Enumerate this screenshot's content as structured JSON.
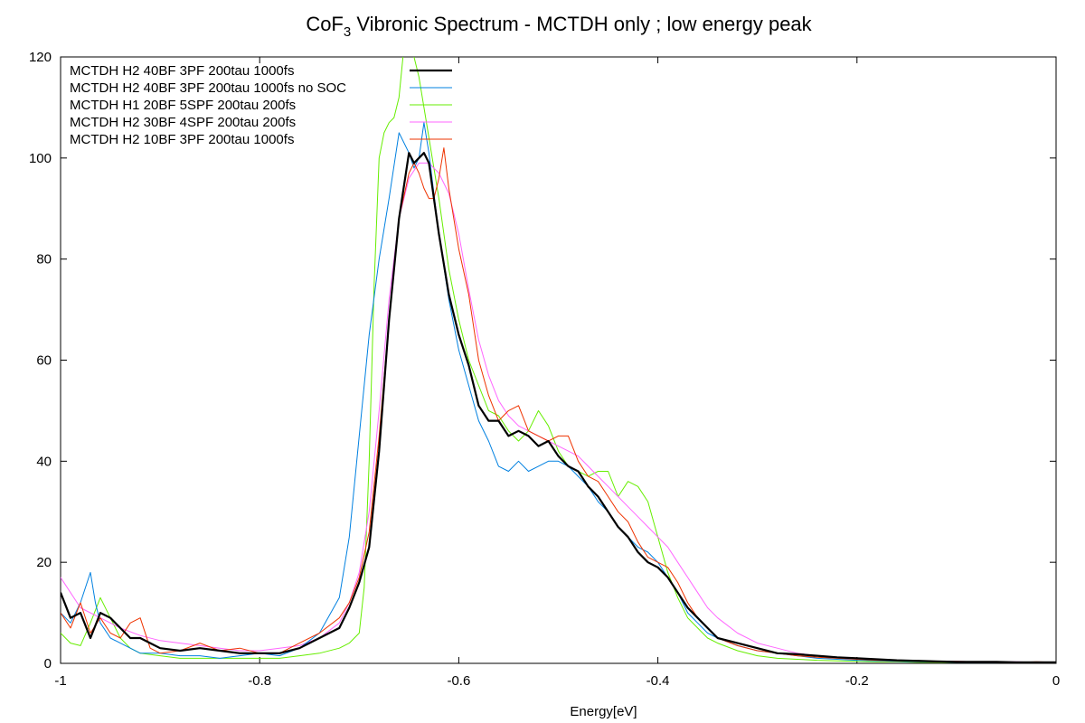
{
  "chart_data": {
    "type": "line",
    "title": "CoF",
    "title_subscript": "3",
    "title_rest": " Vibronic Spectrum - MCTDH only ; low energy peak",
    "xlabel": "Energy[eV]",
    "ylabel": "",
    "xlim": [
      -1,
      0
    ],
    "ylim": [
      0,
      120
    ],
    "x_ticks": [
      -1,
      -0.8,
      -0.6,
      -0.4,
      -0.2,
      0
    ],
    "x_tick_labels": [
      "-1",
      "-0.8",
      "-0.6",
      "-0.4",
      "-0.2",
      "0"
    ],
    "y_ticks": [
      0,
      20,
      40,
      60,
      80,
      100,
      120
    ],
    "y_tick_labels": [
      "0",
      "20",
      "40",
      "60",
      "80",
      "100",
      "120"
    ],
    "grid": false,
    "zero_line": "dotted",
    "legend_position": "top-left",
    "series": [
      {
        "name": "MCTDH H2 40BF 3PF 200tau 1000fs",
        "color": "#000000",
        "bold": true,
        "x": [
          -1.0,
          -0.99,
          -0.98,
          -0.97,
          -0.96,
          -0.95,
          -0.94,
          -0.93,
          -0.92,
          -0.91,
          -0.9,
          -0.88,
          -0.86,
          -0.84,
          -0.82,
          -0.8,
          -0.78,
          -0.76,
          -0.74,
          -0.72,
          -0.71,
          -0.7,
          -0.69,
          -0.68,
          -0.67,
          -0.66,
          -0.65,
          -0.645,
          -0.64,
          -0.635,
          -0.63,
          -0.625,
          -0.62,
          -0.61,
          -0.6,
          -0.59,
          -0.58,
          -0.57,
          -0.56,
          -0.55,
          -0.54,
          -0.53,
          -0.52,
          -0.51,
          -0.5,
          -0.49,
          -0.48,
          -0.47,
          -0.46,
          -0.45,
          -0.44,
          -0.43,
          -0.42,
          -0.41,
          -0.4,
          -0.39,
          -0.38,
          -0.37,
          -0.36,
          -0.35,
          -0.34,
          -0.32,
          -0.3,
          -0.28,
          -0.26,
          -0.24,
          -0.22,
          -0.2,
          -0.18,
          -0.16,
          -0.14,
          -0.12,
          -0.1,
          -0.08,
          -0.06,
          -0.04,
          -0.02,
          0.0
        ],
        "y": [
          14,
          9,
          10,
          5,
          10,
          9,
          7,
          5,
          5,
          4,
          3,
          2.5,
          3,
          2.5,
          2,
          2,
          2,
          3,
          5,
          7,
          11,
          16,
          23,
          42,
          68,
          88,
          101,
          99,
          100,
          101,
          99,
          92,
          85,
          73,
          65,
          59,
          51,
          48,
          48,
          45,
          46,
          45,
          43,
          44,
          41,
          39,
          38,
          35,
          33,
          30,
          27,
          25,
          22,
          20,
          19,
          17,
          14,
          11,
          9,
          7,
          5,
          4,
          3,
          2,
          1.8,
          1.5,
          1.2,
          1,
          0.8,
          0.6,
          0.5,
          0.4,
          0.3,
          0.3,
          0.3,
          0.2,
          0.2,
          0.2
        ]
      },
      {
        "name": "MCTDH H2 40BF 3PF 200tau 1000fs no SOC",
        "color": "#0080e0",
        "bold": false,
        "x": [
          -1.0,
          -0.99,
          -0.98,
          -0.97,
          -0.965,
          -0.96,
          -0.95,
          -0.94,
          -0.93,
          -0.92,
          -0.91,
          -0.9,
          -0.88,
          -0.86,
          -0.84,
          -0.82,
          -0.8,
          -0.78,
          -0.76,
          -0.74,
          -0.72,
          -0.71,
          -0.7,
          -0.69,
          -0.68,
          -0.67,
          -0.66,
          -0.65,
          -0.645,
          -0.64,
          -0.635,
          -0.63,
          -0.625,
          -0.62,
          -0.61,
          -0.6,
          -0.59,
          -0.58,
          -0.57,
          -0.56,
          -0.55,
          -0.54,
          -0.53,
          -0.52,
          -0.51,
          -0.5,
          -0.49,
          -0.48,
          -0.47,
          -0.46,
          -0.45,
          -0.44,
          -0.43,
          -0.42,
          -0.41,
          -0.4,
          -0.39,
          -0.38,
          -0.37,
          -0.36,
          -0.35,
          -0.34,
          -0.32,
          -0.3,
          -0.28,
          -0.26,
          -0.24,
          -0.22,
          -0.2,
          -0.18,
          -0.16,
          -0.14,
          -0.12,
          -0.1,
          -0.08,
          -0.06,
          -0.04,
          -0.02,
          0.0
        ],
        "y": [
          10,
          8,
          12,
          18,
          12,
          8,
          5,
          4,
          3,
          2,
          2,
          2,
          1.5,
          1.5,
          1,
          1.5,
          2,
          1.5,
          3,
          6,
          13,
          25,
          45,
          65,
          80,
          92,
          105,
          101,
          98,
          100,
          107,
          101,
          93,
          85,
          72,
          62,
          55,
          48,
          44,
          39,
          38,
          40,
          38,
          39,
          40,
          40,
          39,
          37,
          35,
          32,
          30,
          27,
          25,
          23,
          22,
          20,
          17,
          14,
          10,
          8,
          6,
          5,
          3.5,
          2.5,
          2,
          1.5,
          1,
          0.8,
          0.6,
          0.5,
          0.4,
          0.3,
          0.3,
          0.2,
          0.2,
          0.2,
          0.2,
          0.2,
          0.2
        ]
      },
      {
        "name": "MCTDH H1 20BF 5SPF 200tau 200fs",
        "color": "#66ee00",
        "bold": false,
        "x": [
          -1.0,
          -0.99,
          -0.98,
          -0.97,
          -0.96,
          -0.95,
          -0.94,
          -0.93,
          -0.92,
          -0.9,
          -0.88,
          -0.86,
          -0.84,
          -0.82,
          -0.8,
          -0.78,
          -0.76,
          -0.74,
          -0.72,
          -0.71,
          -0.7,
          -0.695,
          -0.69,
          -0.685,
          -0.68,
          -0.675,
          -0.67,
          -0.665,
          -0.66,
          -0.655,
          -0.65,
          -0.645,
          -0.64,
          -0.635,
          -0.63,
          -0.62,
          -0.61,
          -0.6,
          -0.59,
          -0.58,
          -0.57,
          -0.56,
          -0.55,
          -0.54,
          -0.53,
          -0.52,
          -0.51,
          -0.5,
          -0.49,
          -0.48,
          -0.47,
          -0.46,
          -0.45,
          -0.44,
          -0.43,
          -0.42,
          -0.41,
          -0.4,
          -0.39,
          -0.38,
          -0.37,
          -0.36,
          -0.35,
          -0.34,
          -0.32,
          -0.3,
          -0.28,
          -0.26,
          -0.24,
          -0.22,
          -0.2,
          -0.18,
          -0.16,
          -0.14,
          -0.12,
          -0.1,
          -0.08,
          -0.06,
          -0.04,
          -0.02,
          0.0
        ],
        "y": [
          6,
          4,
          3.5,
          8,
          13,
          9,
          5,
          3,
          2,
          1.5,
          1,
          1,
          1,
          1,
          1,
          1,
          1.5,
          2,
          3,
          4,
          6,
          15,
          40,
          75,
          100,
          105,
          107,
          108,
          112,
          122,
          130,
          120,
          116,
          110,
          104,
          92,
          78,
          68,
          60,
          55,
          50,
          49,
          46,
          44,
          46,
          50,
          47,
          42,
          39,
          38,
          37,
          38,
          38,
          33,
          36,
          35,
          32,
          25,
          18,
          13,
          9,
          7,
          5,
          4,
          2.5,
          1.5,
          1,
          0.8,
          0.6,
          0.5,
          0.4,
          0.3,
          0.3,
          0.2,
          0.2,
          0.2,
          0.2,
          0.2,
          0.2,
          0.2,
          0.2
        ]
      },
      {
        "name": "MCTDH H2 30BF 4SPF 200tau 200fs",
        "color": "#ff66ff",
        "bold": false,
        "x": [
          -1.0,
          -0.98,
          -0.96,
          -0.94,
          -0.92,
          -0.9,
          -0.88,
          -0.86,
          -0.84,
          -0.82,
          -0.8,
          -0.78,
          -0.76,
          -0.74,
          -0.72,
          -0.71,
          -0.7,
          -0.69,
          -0.68,
          -0.67,
          -0.66,
          -0.65,
          -0.64,
          -0.63,
          -0.62,
          -0.61,
          -0.6,
          -0.59,
          -0.58,
          -0.57,
          -0.56,
          -0.55,
          -0.54,
          -0.53,
          -0.52,
          -0.51,
          -0.5,
          -0.49,
          -0.48,
          -0.47,
          -0.46,
          -0.45,
          -0.44,
          -0.43,
          -0.42,
          -0.41,
          -0.4,
          -0.39,
          -0.38,
          -0.37,
          -0.36,
          -0.35,
          -0.34,
          -0.32,
          -0.3,
          -0.28,
          -0.26,
          -0.24,
          -0.22,
          -0.2,
          -0.18,
          -0.16,
          -0.14,
          -0.12,
          -0.1,
          -0.08,
          -0.06,
          -0.04,
          -0.02,
          0.0
        ],
        "y": [
          17,
          11,
          9,
          7,
          5.5,
          4.5,
          4,
          3.5,
          3,
          2.5,
          2.5,
          3,
          3.5,
          5,
          8,
          12,
          18,
          30,
          50,
          72,
          88,
          96,
          99,
          99,
          97,
          93,
          85,
          74,
          64,
          57,
          52,
          49,
          47,
          46,
          45,
          44,
          43,
          42,
          41,
          39,
          37,
          35,
          33,
          31,
          29,
          27,
          25,
          23,
          20,
          17,
          14,
          11,
          9,
          6,
          4,
          3,
          2,
          1.5,
          1.2,
          1,
          0.8,
          0.6,
          0.5,
          0.4,
          0.4,
          0.3,
          0.3,
          0.3,
          0.2,
          0.2
        ]
      },
      {
        "name": "MCTDH H2 10BF 3PF 200tau 1000fs",
        "color": "#ee3300",
        "bold": false,
        "x": [
          -1.0,
          -0.99,
          -0.98,
          -0.97,
          -0.96,
          -0.95,
          -0.94,
          -0.93,
          -0.92,
          -0.91,
          -0.9,
          -0.88,
          -0.86,
          -0.84,
          -0.82,
          -0.8,
          -0.78,
          -0.76,
          -0.74,
          -0.72,
          -0.71,
          -0.7,
          -0.69,
          -0.68,
          -0.67,
          -0.66,
          -0.65,
          -0.645,
          -0.64,
          -0.635,
          -0.63,
          -0.625,
          -0.62,
          -0.615,
          -0.61,
          -0.6,
          -0.59,
          -0.58,
          -0.57,
          -0.56,
          -0.55,
          -0.54,
          -0.53,
          -0.52,
          -0.51,
          -0.5,
          -0.49,
          -0.48,
          -0.47,
          -0.46,
          -0.45,
          -0.44,
          -0.43,
          -0.42,
          -0.41,
          -0.4,
          -0.39,
          -0.38,
          -0.37,
          -0.36,
          -0.35,
          -0.34,
          -0.32,
          -0.3,
          -0.28,
          -0.26,
          -0.24,
          -0.22,
          -0.2,
          -0.18,
          -0.16,
          -0.14,
          -0.12,
          -0.1,
          -0.08,
          -0.06,
          -0.04,
          -0.02,
          0.0
        ],
        "y": [
          10,
          7,
          12,
          6,
          9,
          6,
          5,
          8,
          9,
          3,
          2,
          2.5,
          4,
          2.5,
          3,
          2,
          2,
          4,
          6,
          9,
          12,
          17,
          26,
          45,
          68,
          88,
          97,
          99,
          97,
          94,
          92,
          92,
          96,
          102,
          94,
          82,
          73,
          60,
          53,
          48,
          50,
          51,
          46,
          45,
          44,
          45,
          45,
          40,
          37,
          36,
          33,
          30,
          28,
          24,
          21,
          20,
          19,
          16,
          12,
          9,
          7,
          5,
          3.5,
          2.5,
          2,
          1.5,
          1.2,
          1,
          0.8,
          0.6,
          0.5,
          0.4,
          0.3,
          0.4,
          0.3,
          0.3,
          0.2,
          0.3,
          0.2
        ]
      }
    ]
  }
}
